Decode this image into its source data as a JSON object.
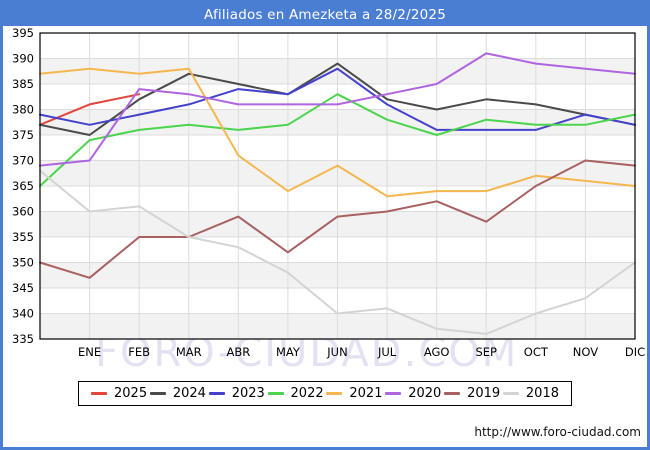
{
  "title_bar": {
    "text": "Afiliados en Amezketa a 28/2/2025",
    "bg": "#4a7ed3",
    "fg": "#ffffff"
  },
  "watermark": {
    "text": "FORO-CIUDAD.COM"
  },
  "footer": {
    "url": "http://www.foro-ciudad.com"
  },
  "chart_data": {
    "type": "line",
    "title": "Afiliados en Amezketa a 28/2/2025",
    "xlabel": "",
    "ylabel": "",
    "x_categories": [
      "ENE",
      "FEB",
      "MAR",
      "ABR",
      "MAY",
      "JUN",
      "JUL",
      "AGO",
      "SEP",
      "OCT",
      "NOV",
      "DIC"
    ],
    "x_start_note": "each series has 13 points: value at the y-axis (previous December) followed by ENE..DIC",
    "ylim": [
      335,
      395
    ],
    "yticks": [
      335,
      340,
      345,
      350,
      355,
      360,
      365,
      370,
      375,
      380,
      385,
      390,
      395
    ],
    "grid": true,
    "grid_color": "#dcdcdc",
    "band_color": "#f2f2f2",
    "frame_color": "#000000",
    "legend_position": "bottom",
    "series": [
      {
        "name": "2025",
        "color": "#e2453c",
        "values": [
          377,
          381,
          383
        ]
      },
      {
        "name": "2024",
        "color": "#4a4a4a",
        "values": [
          377,
          375,
          382,
          387,
          385,
          383,
          389,
          382,
          380,
          382,
          381,
          379,
          377
        ]
      },
      {
        "name": "2023",
        "color": "#4442cd",
        "values": [
          379,
          377,
          379,
          381,
          384,
          383,
          388,
          381,
          376,
          376,
          376,
          379,
          377
        ]
      },
      {
        "name": "2022",
        "color": "#4cd44c",
        "values": [
          365,
          374,
          376,
          377,
          376,
          377,
          383,
          378,
          375,
          378,
          377,
          377,
          379
        ]
      },
      {
        "name": "2021",
        "color": "#f4b74f",
        "values": [
          387,
          388,
          387,
          388,
          371,
          364,
          369,
          363,
          364,
          364,
          367,
          366,
          365
        ]
      },
      {
        "name": "2020",
        "color": "#b065e0",
        "values": [
          369,
          370,
          384,
          383,
          381,
          381,
          381,
          383,
          385,
          391,
          389,
          388,
          387
        ]
      },
      {
        "name": "2019",
        "color": "#a96060",
        "values": [
          350,
          347,
          355,
          355,
          359,
          352,
          359,
          360,
          362,
          358,
          365,
          370,
          369
        ]
      },
      {
        "name": "2018",
        "color": "#d4d4d4",
        "values": [
          368,
          360,
          361,
          355,
          353,
          348,
          340,
          341,
          337,
          336,
          340,
          343,
          350
        ]
      }
    ]
  }
}
